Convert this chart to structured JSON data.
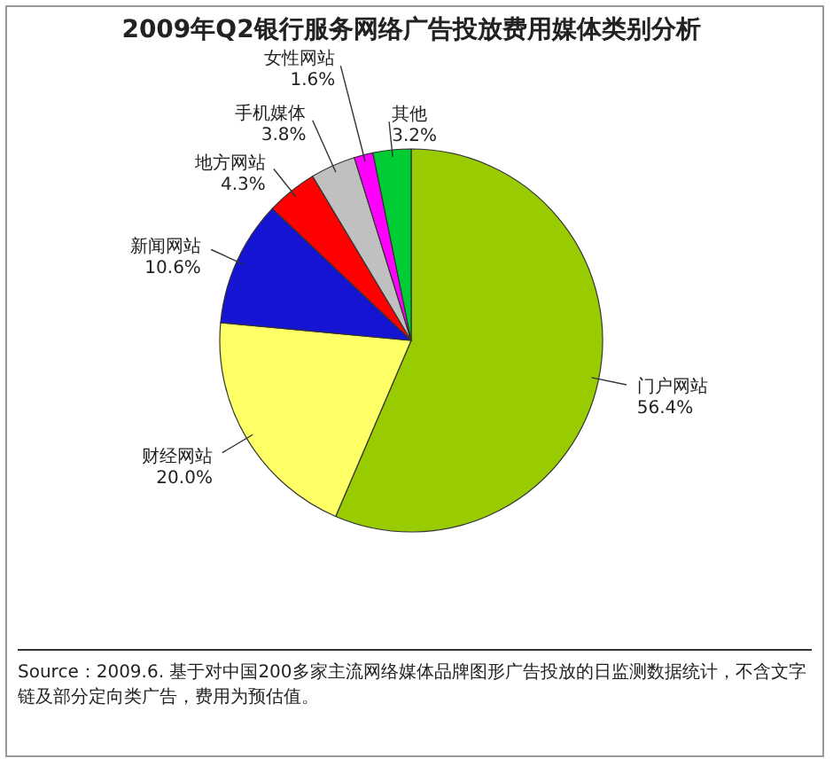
{
  "chart_data": {
    "type": "pie",
    "title": "2009年Q2银行服务网络广告投放费用媒体类别分析",
    "categories": [
      "门户网站",
      "财经网站",
      "新闻网站",
      "地方网站",
      "手机媒体",
      "女性网站",
      "其他"
    ],
    "values": [
      56.4,
      20.0,
      10.6,
      4.3,
      3.8,
      1.6,
      3.2
    ],
    "colors": [
      "#99cc00",
      "#ffff66",
      "#1414d2",
      "#ff0000",
      "#c0c0c0",
      "#ff00ff",
      "#00cc33"
    ],
    "value_labels": [
      "56.4%",
      "20.0%",
      "10.6%",
      "4.3%",
      "3.8%",
      "1.6%",
      "3.2%"
    ],
    "annotations": [
      "Source：2009.6. 基于对中国200多家主流网络媒体品牌图形广告投放的日监测数据统计，不含文字链及部分定向类广告，费用为预估值。"
    ]
  }
}
